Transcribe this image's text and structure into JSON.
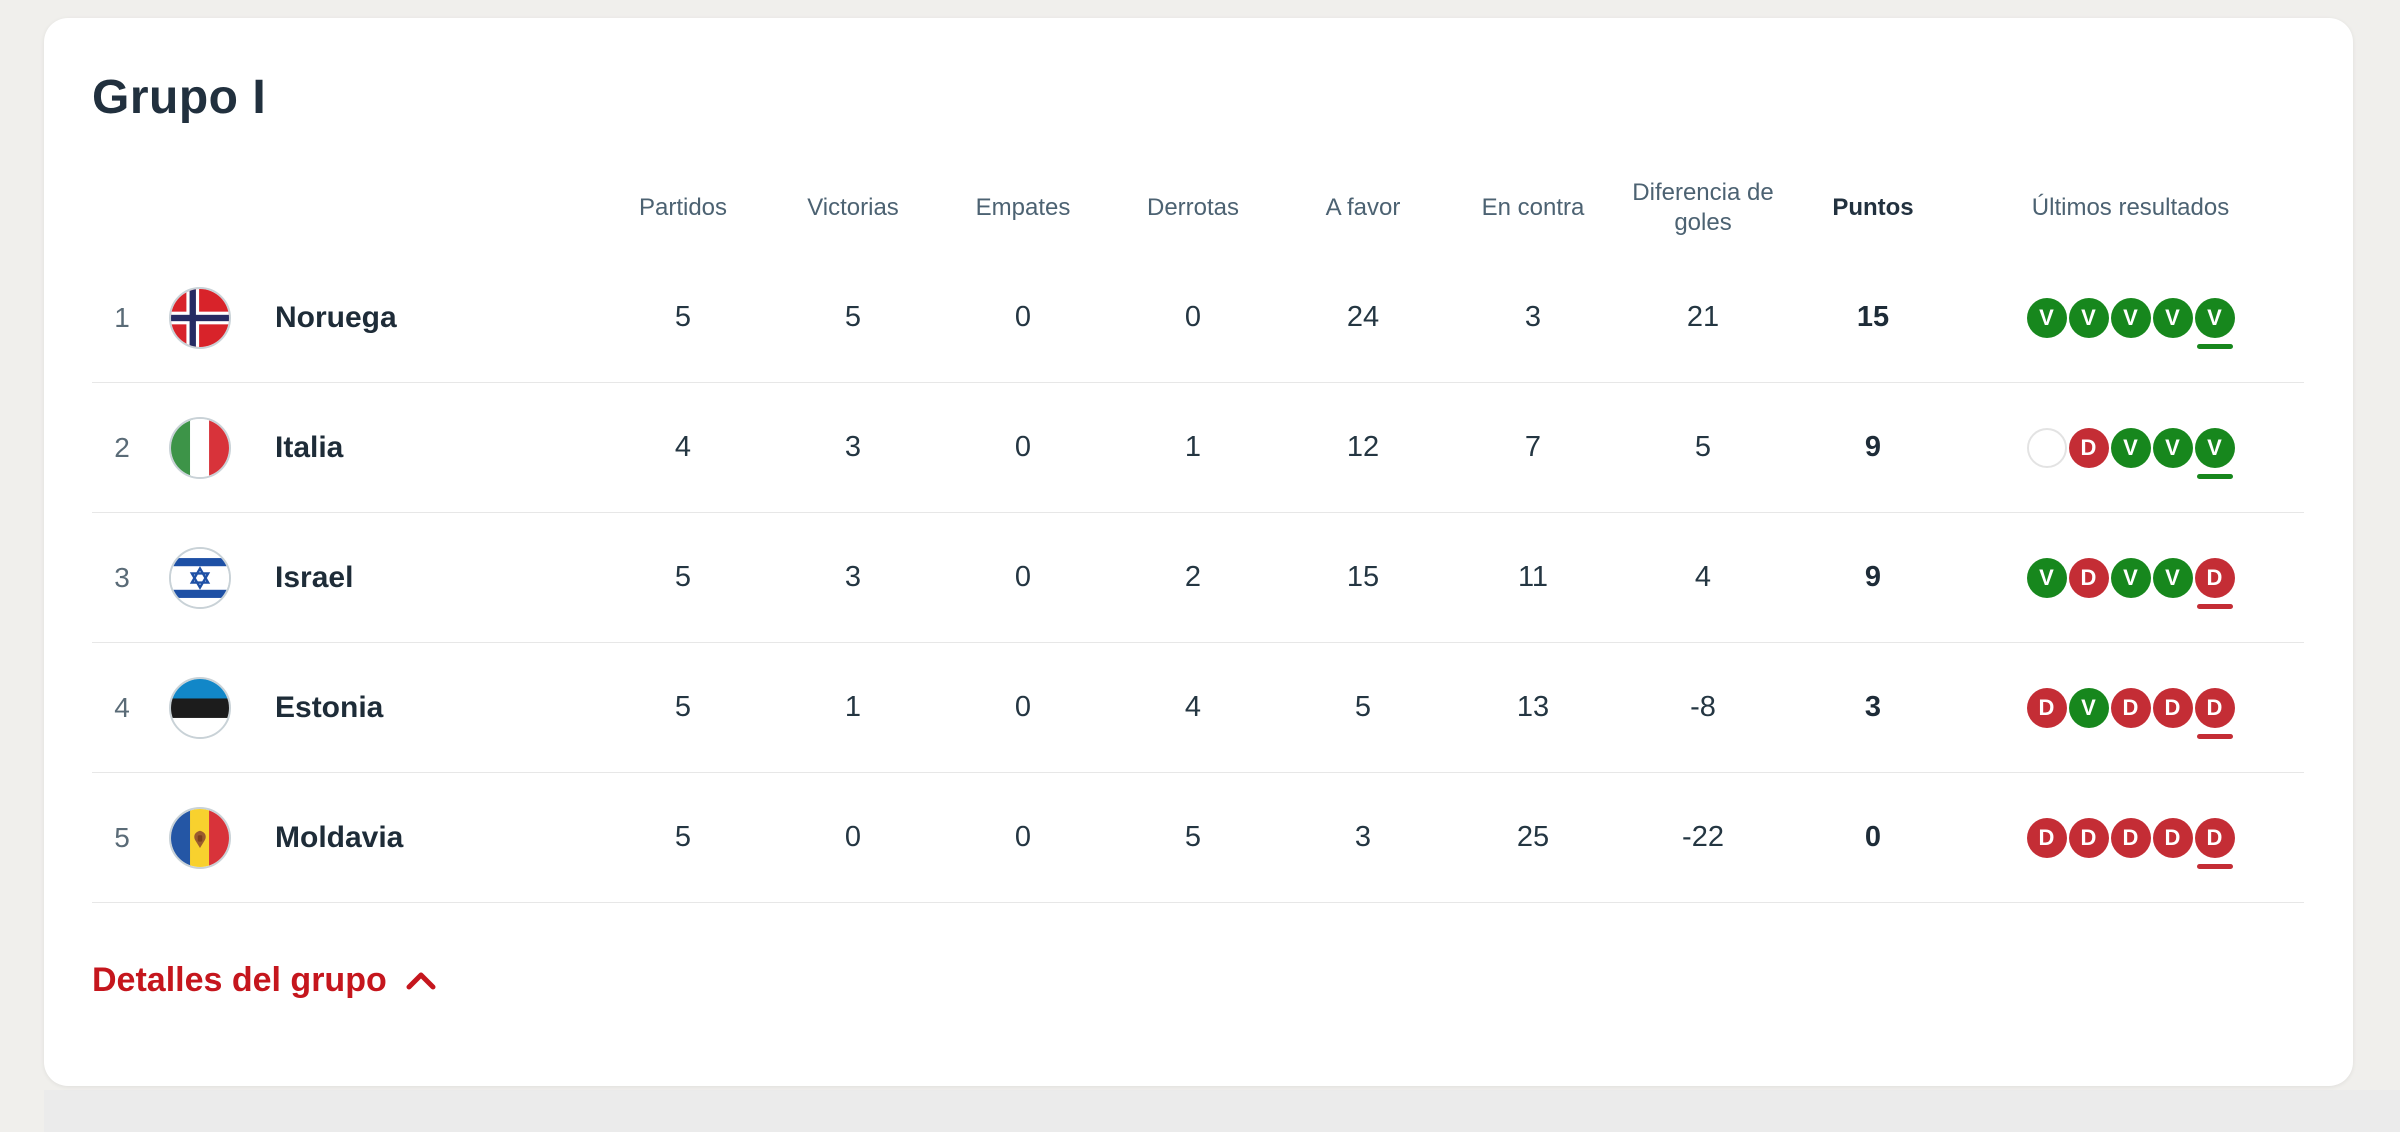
{
  "group": {
    "title": "Grupo I"
  },
  "columns": {
    "played": "Partidos",
    "wins": "Victorias",
    "draws": "Empates",
    "losses": "Derrotas",
    "goals_for": "A favor",
    "goals_against": "En contra",
    "goal_difference": "Diferencia de goles",
    "points": "Puntos",
    "recent_results": "Últimos resultados"
  },
  "standings": [
    {
      "rank": "1",
      "team": "Noruega",
      "flag": "norway",
      "played": "5",
      "wins": "5",
      "draws": "0",
      "losses": "0",
      "goals_for": "24",
      "goals_against": "3",
      "goal_difference": "21",
      "points": "15",
      "results": [
        "V",
        "V",
        "V",
        "V",
        "V"
      ]
    },
    {
      "rank": "2",
      "team": "Italia",
      "flag": "italy",
      "played": "4",
      "wins": "3",
      "draws": "0",
      "losses": "1",
      "goals_for": "12",
      "goals_against": "7",
      "goal_difference": "5",
      "points": "9",
      "results": [
        "",
        "D",
        "V",
        "V",
        "V"
      ]
    },
    {
      "rank": "3",
      "team": "Israel",
      "flag": "israel",
      "played": "5",
      "wins": "3",
      "draws": "0",
      "losses": "2",
      "goals_for": "15",
      "goals_against": "11",
      "goal_difference": "4",
      "points": "9",
      "results": [
        "V",
        "D",
        "V",
        "V",
        "D"
      ]
    },
    {
      "rank": "4",
      "team": "Estonia",
      "flag": "estonia",
      "played": "5",
      "wins": "1",
      "draws": "0",
      "losses": "4",
      "goals_for": "5",
      "goals_against": "13",
      "goal_difference": "-8",
      "points": "3",
      "results": [
        "D",
        "V",
        "D",
        "D",
        "D"
      ]
    },
    {
      "rank": "5",
      "team": "Moldavia",
      "flag": "moldova",
      "played": "5",
      "wins": "0",
      "draws": "0",
      "losses": "5",
      "goals_for": "3",
      "goals_against": "25",
      "goal_difference": "-22",
      "points": "0",
      "results": [
        "D",
        "D",
        "D",
        "D",
        "D"
      ]
    }
  ],
  "results_style": {
    "win_letter": "V",
    "loss_letter": "D",
    "win_color": "#17871d",
    "loss_color": "#c42d35"
  },
  "details_link": {
    "label": "Detalles del grupo"
  },
  "colors": {
    "accent_red": "#c5161d",
    "text_dark": "#1e2c38",
    "text_muted": "#4c6272",
    "page_background": "#f0efec",
    "footer_strip": "#ebebeb",
    "divider": "#e7e7e7"
  }
}
